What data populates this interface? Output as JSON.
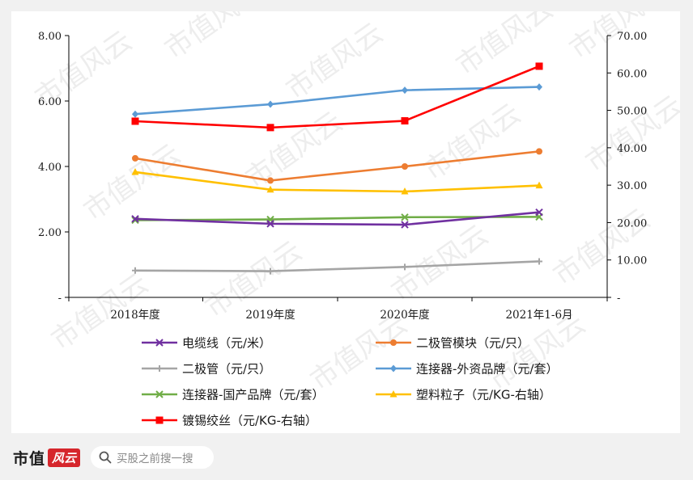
{
  "chart_data": {
    "type": "line",
    "categories": [
      "2018年度",
      "2019年度",
      "2020年度",
      "2021年1-6月"
    ],
    "left_axis": {
      "ylim": [
        0,
        8
      ],
      "ticks": [
        {
          "value": 0,
          "label": "-"
        },
        {
          "value": 2,
          "label": "2.00"
        },
        {
          "value": 4,
          "label": "4.00"
        },
        {
          "value": 6,
          "label": "6.00"
        },
        {
          "value": 8,
          "label": "8.00"
        }
      ]
    },
    "right_axis": {
      "ylim": [
        0,
        70
      ],
      "ticks": [
        {
          "value": 0,
          "label": "-"
        },
        {
          "value": 10,
          "label": "10.00"
        },
        {
          "value": 20,
          "label": "20.00"
        },
        {
          "value": 30,
          "label": "30.00"
        },
        {
          "value": 40,
          "label": "40.00"
        },
        {
          "value": 50,
          "label": "50.00"
        },
        {
          "value": 60,
          "label": "60.00"
        },
        {
          "value": 70,
          "label": "70.00"
        }
      ]
    },
    "series": [
      {
        "name": "电缆线（元/米）",
        "axis": "left",
        "color": "#7030a0",
        "marker": "x",
        "values": [
          2.4,
          2.25,
          2.22,
          2.6
        ]
      },
      {
        "name": "二极管模块（元/只）",
        "axis": "left",
        "color": "#ed7d31",
        "marker": "circle",
        "values": [
          4.25,
          3.57,
          4.0,
          4.46
        ]
      },
      {
        "name": "二极管（元/只）",
        "axis": "left",
        "color": "#a5a5a5",
        "marker": "plus",
        "values": [
          0.82,
          0.8,
          0.93,
          1.1
        ]
      },
      {
        "name": "连接器-外资品牌（元/套）",
        "axis": "left",
        "color": "#5b9bd5",
        "marker": "diamond",
        "values": [
          5.6,
          5.9,
          6.33,
          6.43
        ]
      },
      {
        "name": "连接器-国产品牌（元/套）",
        "axis": "left",
        "color": "#70ad47",
        "marker": "x",
        "values": [
          2.36,
          2.38,
          2.45,
          2.46
        ]
      },
      {
        "name": "塑料粒子（元/KG-右轴）",
        "axis": "right",
        "color": "#ffc000",
        "marker": "triangle",
        "values": [
          33.5,
          28.8,
          28.3,
          29.9
        ]
      },
      {
        "name": "镀锡绞丝（元/KG-右轴）",
        "axis": "right",
        "color": "#ff0000",
        "marker": "square",
        "values": [
          47.1,
          45.4,
          47.2,
          61.8
        ]
      }
    ],
    "grid": false,
    "legend_position": "bottom"
  },
  "watermark": "市值风云",
  "footer": {
    "brand": "市值",
    "brand_badge": "风云",
    "search_placeholder": "买股之前搜一搜"
  }
}
